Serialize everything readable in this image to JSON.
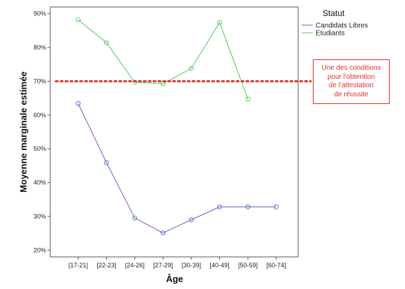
{
  "chart_data": {
    "type": "line",
    "title": "",
    "xlabel": "Âge",
    "ylabel": "Moyenne marginale estimée",
    "categories": [
      "[17-21]",
      "[22-23]",
      "[24-26]",
      "[27-29]",
      "[30-39]",
      "[40-49]",
      "[50-59]",
      "[60-74]"
    ],
    "ylim": [
      0.18,
      0.92
    ],
    "yticks": [
      0.2,
      0.3,
      0.4,
      0.5,
      0.6,
      0.7,
      0.8,
      0.9
    ],
    "ytick_labels": [
      "20%",
      "30%",
      "40%",
      "50%",
      "60%",
      "70%",
      "80%",
      "90%"
    ],
    "legend": {
      "title": "Statut",
      "placement": "top-right, outside plot"
    },
    "series": [
      {
        "name": "Candidats Libres",
        "color": "#6f7fd0",
        "values": [
          0.634,
          0.459,
          0.295,
          0.251,
          0.29,
          0.328,
          0.328,
          0.328
        ]
      },
      {
        "name": "Etudiants",
        "color": "#6fcf6f",
        "values": [
          0.882,
          0.814,
          0.697,
          0.693,
          0.738,
          0.874,
          0.647,
          null
        ]
      }
    ],
    "reference_line": {
      "y": 0.7,
      "color": "#e0302a",
      "style": "dotted"
    },
    "annotation": {
      "text": "Une des conditions\npour l'obtention\nde l'attestation\nde réussite",
      "color": "#e0302a"
    }
  }
}
